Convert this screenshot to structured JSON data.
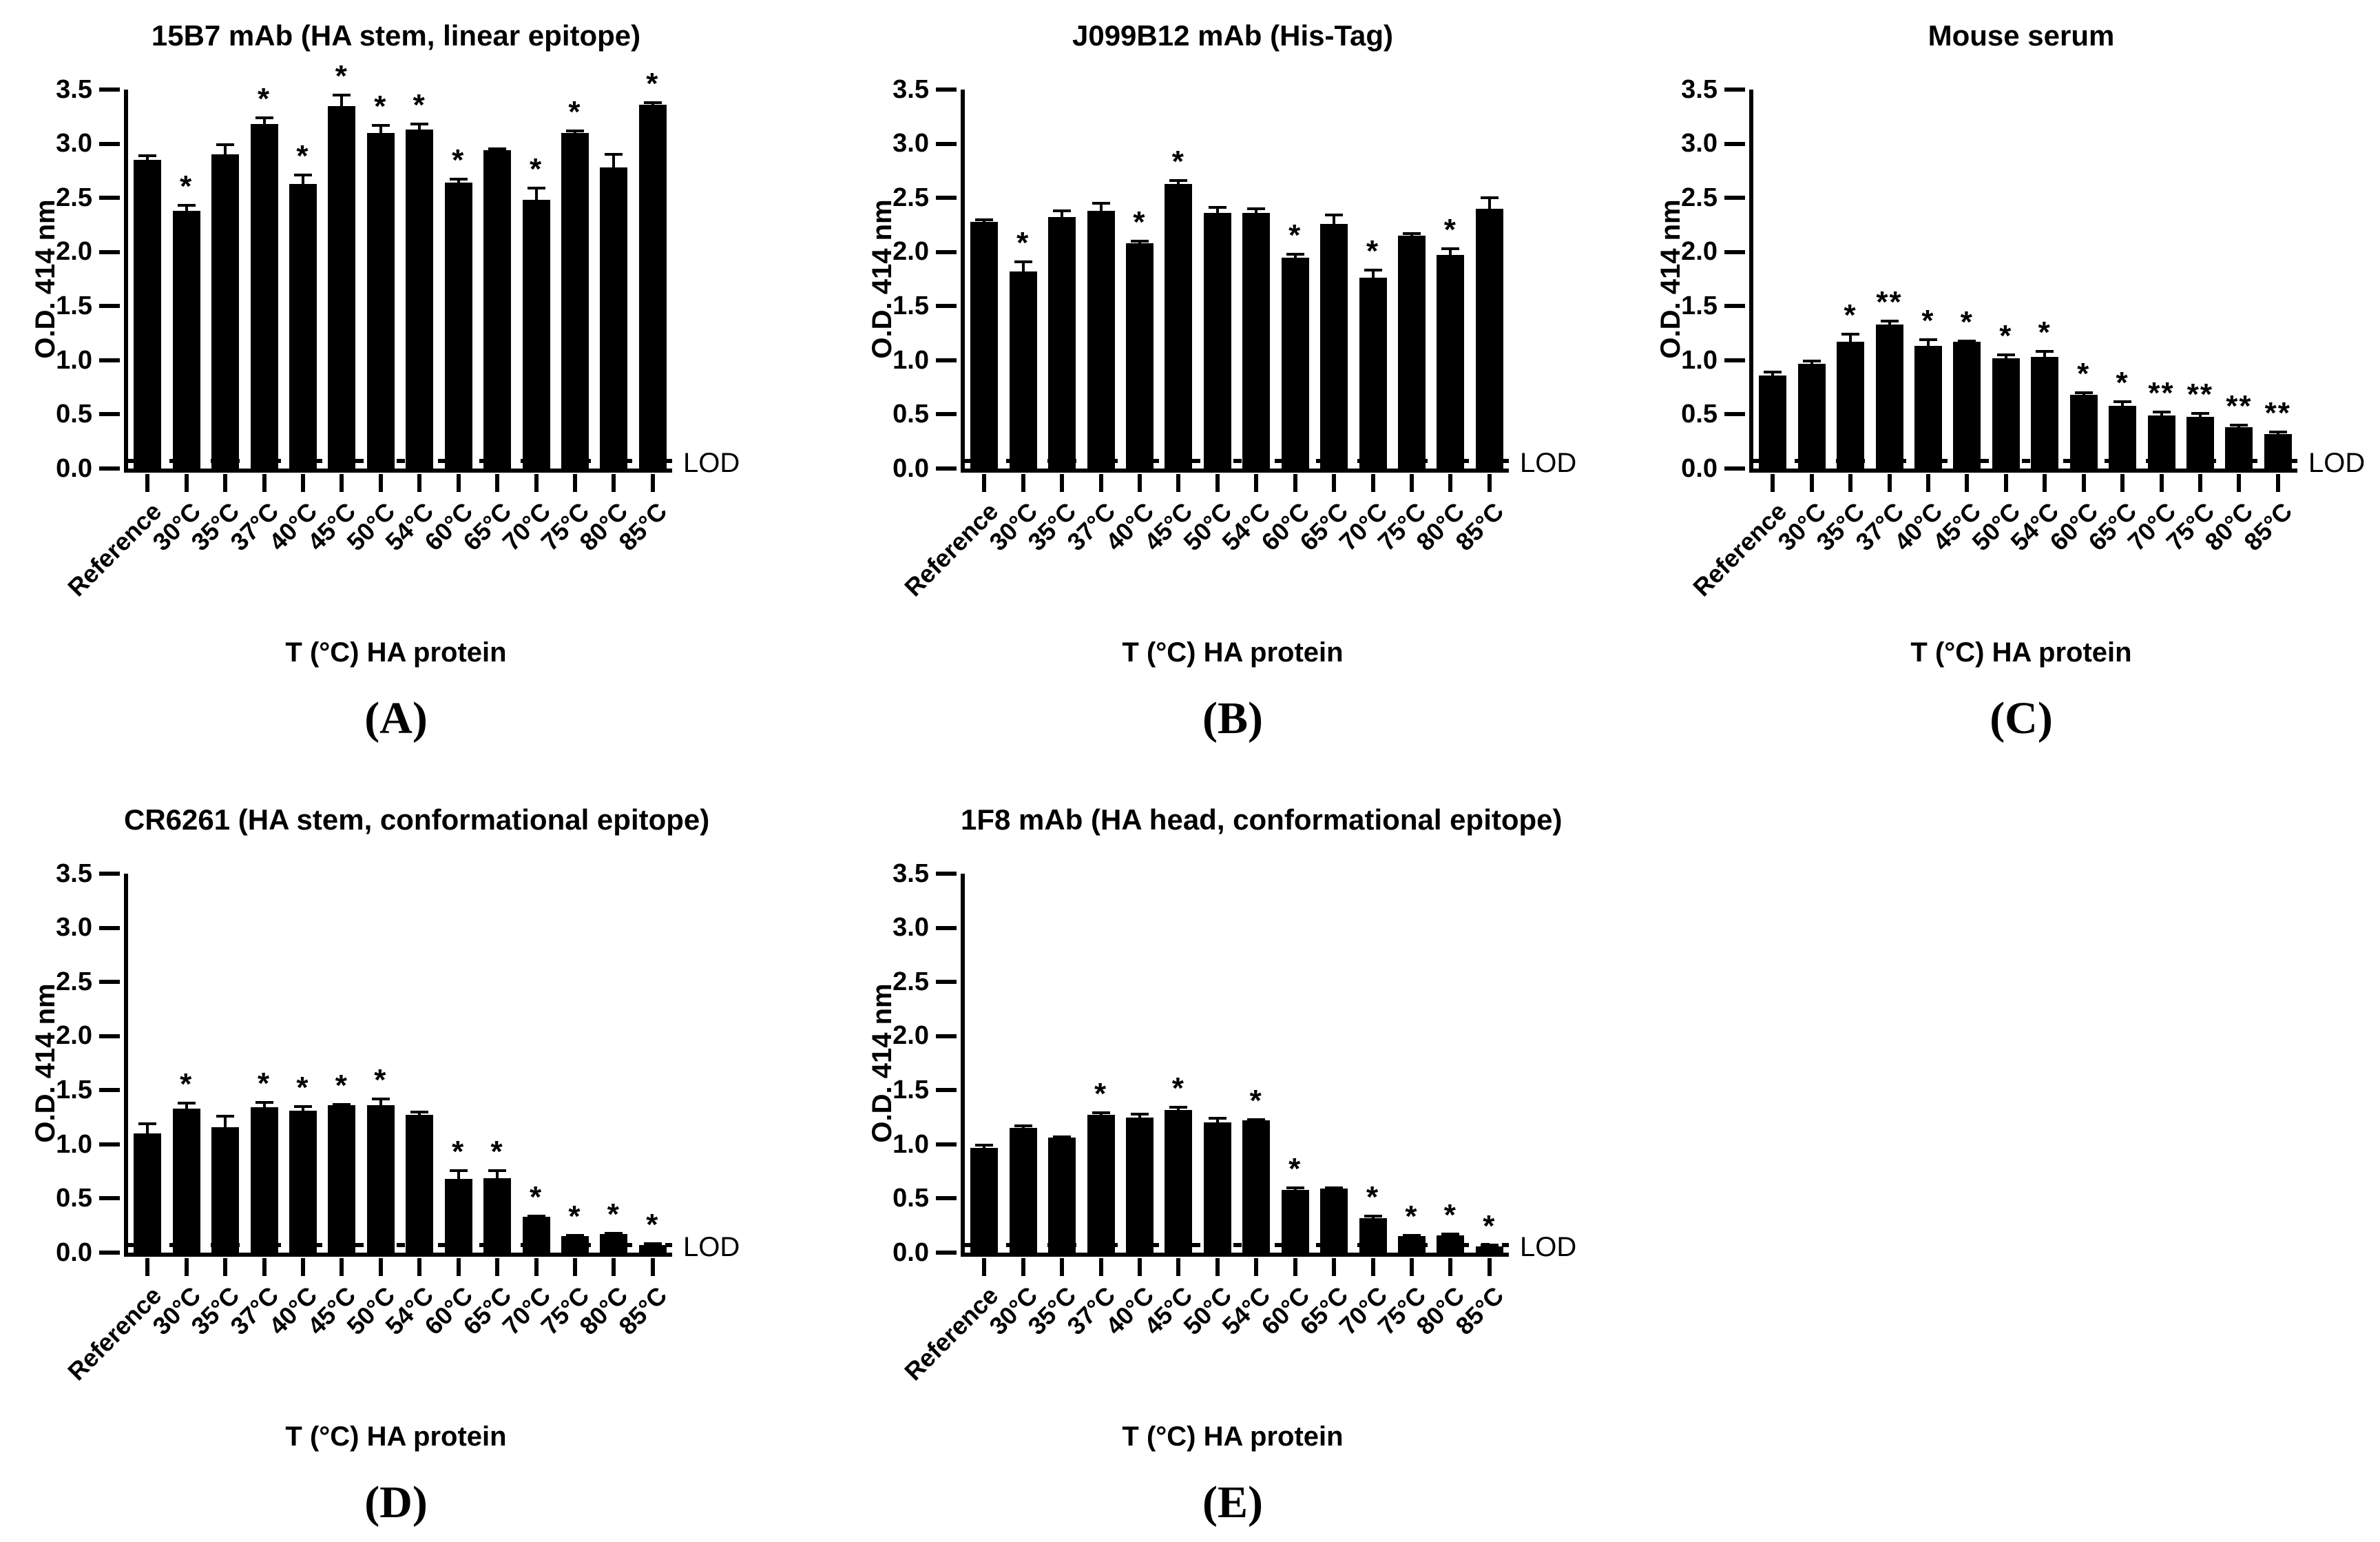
{
  "axes": {
    "ylabel": "O.D. 414 nm",
    "xlabel": "T (°C) HA protein",
    "lod_label": "LOD",
    "ylim": [
      0,
      3.5
    ],
    "yticks": [
      "0.0",
      "0.5",
      "1.0",
      "1.5",
      "2.0",
      "2.5",
      "3.0",
      "3.5"
    ],
    "grid": "off",
    "legend": "none"
  },
  "categories": [
    "Reference",
    "30°C",
    "35°C",
    "37°C",
    "40°C",
    "45°C",
    "50°C",
    "54°C",
    "60°C",
    "65°C",
    "70°C",
    "75°C",
    "80°C",
    "85°C"
  ],
  "style": {
    "bar_color": "#000000",
    "background": "#ffffff"
  },
  "chart_data": [
    {
      "type": "bar",
      "letter": "(A)",
      "title": "15B7 mAb (HA stem, linear epitope)",
      "lod": 0.07,
      "values": [
        2.85,
        2.38,
        2.9,
        3.18,
        2.63,
        3.35,
        3.1,
        3.13,
        2.64,
        2.94,
        2.48,
        3.1,
        2.78,
        3.36
      ],
      "errors": [
        0.04,
        0.05,
        0.09,
        0.06,
        0.08,
        0.1,
        0.07,
        0.05,
        0.03,
        0.01,
        0.11,
        0.02,
        0.12,
        0.02
      ],
      "significance": [
        "",
        "*",
        "",
        "*",
        "*",
        "*",
        "*",
        "*",
        "*",
        "",
        "*",
        "*",
        "",
        "*"
      ]
    },
    {
      "type": "bar",
      "letter": "(B)",
      "title": "J099B12 mAb (His-Tag)",
      "lod": 0.07,
      "values": [
        2.28,
        1.82,
        2.32,
        2.38,
        2.08,
        2.63,
        2.36,
        2.36,
        1.95,
        2.26,
        1.76,
        2.15,
        1.97,
        2.4
      ],
      "errors": [
        0.02,
        0.09,
        0.06,
        0.07,
        0.02,
        0.03,
        0.05,
        0.04,
        0.03,
        0.08,
        0.07,
        0.02,
        0.06,
        0.1
      ],
      "significance": [
        "",
        "*",
        "",
        "",
        "*",
        "*",
        "",
        "",
        "*",
        "",
        "*",
        "",
        "*",
        ""
      ]
    },
    {
      "type": "bar",
      "letter": "(C)",
      "title": "Mouse serum",
      "lod": 0.07,
      "values": [
        0.86,
        0.97,
        1.17,
        1.33,
        1.13,
        1.17,
        1.02,
        1.03,
        0.68,
        0.58,
        0.49,
        0.48,
        0.38,
        0.32
      ],
      "errors": [
        0.03,
        0.02,
        0.07,
        0.03,
        0.06,
        0.01,
        0.03,
        0.05,
        0.02,
        0.04,
        0.03,
        0.03,
        0.02,
        0.02
      ],
      "significance": [
        "",
        "",
        "*",
        "**",
        "*",
        "*",
        "*",
        "*",
        "*",
        "*",
        "**",
        "**",
        "**",
        "**"
      ]
    },
    {
      "type": "bar",
      "letter": "(D)",
      "title": "CR6261 (HA stem, conformational epitope)",
      "lod": 0.07,
      "values": [
        1.1,
        1.33,
        1.16,
        1.34,
        1.31,
        1.36,
        1.36,
        1.27,
        0.68,
        0.69,
        0.33,
        0.15,
        0.17,
        0.07
      ],
      "errors": [
        0.09,
        0.05,
        0.1,
        0.05,
        0.04,
        0.01,
        0.06,
        0.03,
        0.08,
        0.07,
        0.01,
        0.01,
        0.01,
        0.01
      ],
      "significance": [
        "",
        "*",
        "",
        "*",
        "*",
        "*",
        "*",
        "",
        "*",
        "*",
        "*",
        "*",
        "*",
        "*"
      ]
    },
    {
      "type": "bar",
      "letter": "(E)",
      "title": "1F8 mAb (HA head, conformational epitope)",
      "lod": 0.07,
      "values": [
        0.97,
        1.15,
        1.06,
        1.27,
        1.25,
        1.32,
        1.2,
        1.22,
        0.58,
        0.59,
        0.32,
        0.15,
        0.16,
        0.06
      ],
      "errors": [
        0.02,
        0.02,
        0.01,
        0.02,
        0.03,
        0.02,
        0.04,
        0.01,
        0.02,
        0.01,
        0.02,
        0.01,
        0.01,
        0.01
      ],
      "significance": [
        "",
        "",
        "",
        "*",
        "",
        "*",
        "",
        "*",
        "*",
        "",
        "*",
        "*",
        "*",
        "*"
      ]
    }
  ]
}
